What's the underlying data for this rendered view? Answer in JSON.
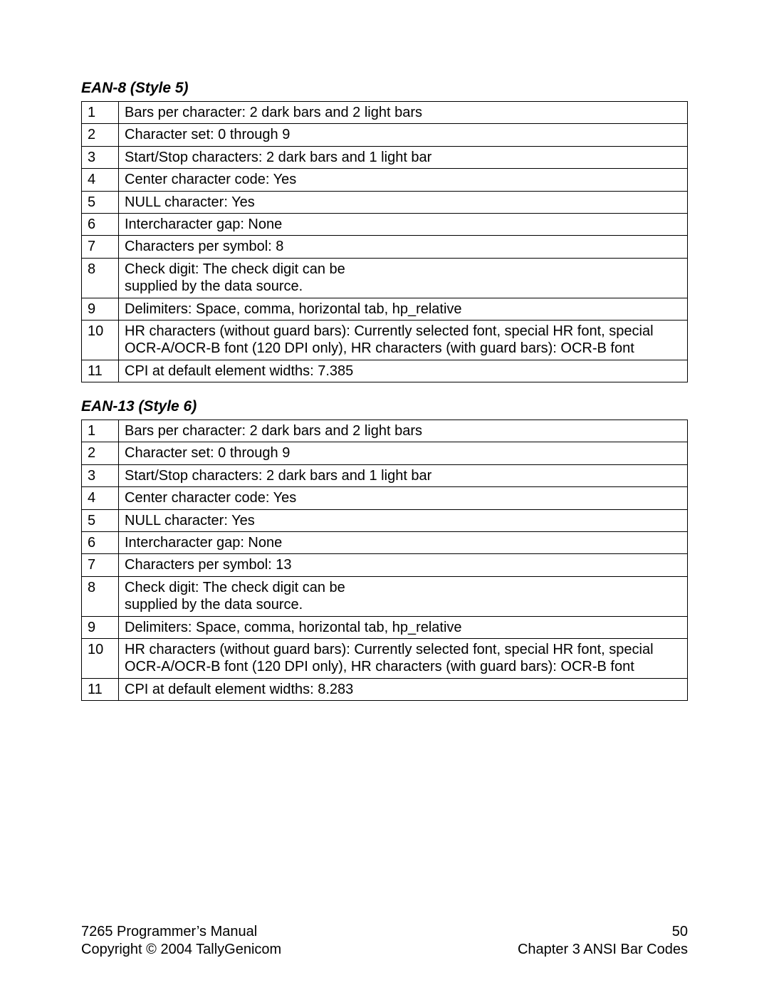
{
  "section1": {
    "heading": "EAN-8 (Style 5)",
    "rows": [
      {
        "n": "1",
        "t": "Bars per character: 2 dark bars and 2 light bars"
      },
      {
        "n": "2",
        "t": "Character set: 0 through 9"
      },
      {
        "n": "3",
        "t": "Start/Stop characters: 2 dark bars and 1 light bar"
      },
      {
        "n": "4",
        "t": "Center character code: Yes"
      },
      {
        "n": "5",
        "t": "NULL character: Yes"
      },
      {
        "n": "6",
        "t": "Intercharacter gap: None"
      },
      {
        "n": "7",
        "t": "Characters per symbol: 8"
      },
      {
        "n": "8",
        "t": "Check digit: The check digit can be\nsupplied by the data source."
      },
      {
        "n": "9",
        "t": "Delimiters: Space, comma, horizontal tab, hp_relative"
      },
      {
        "n": "10",
        "t": "HR characters (without guard bars): Currently selected font, special HR font, special OCR-A/OCR-B font (120 DPI only), HR characters (with guard bars): OCR-B font"
      },
      {
        "n": "11",
        "t": "CPI at default element widths: 7.385"
      }
    ]
  },
  "section2": {
    "heading": "EAN-13 (Style 6)",
    "rows": [
      {
        "n": "1",
        "t": "Bars per character: 2 dark bars and 2 light bars"
      },
      {
        "n": "2",
        "t": "Character set: 0 through 9"
      },
      {
        "n": "3",
        "t": "Start/Stop characters: 2 dark bars and 1 light bar"
      },
      {
        "n": "4",
        "t": "Center character code: Yes"
      },
      {
        "n": "5",
        "t": "NULL character: Yes"
      },
      {
        "n": "6",
        "t": "Intercharacter gap: None"
      },
      {
        "n": "7",
        "t": "Characters per symbol: 13"
      },
      {
        "n": "8",
        "t": "Check digit: The check digit can be\nsupplied by the data source."
      },
      {
        "n": "9",
        "t": "Delimiters: Space, comma, horizontal tab, hp_relative"
      },
      {
        "n": "10",
        "t": "HR characters (without guard bars): Currently selected font, special HR font, special OCR-A/OCR-B font (120 DPI only), HR characters (with guard bars): OCR-B font"
      },
      {
        "n": "11",
        "t": "CPI at default element widths: 8.283"
      }
    ]
  },
  "footer": {
    "left_line1": "7265 Programmer’s Manual",
    "left_line2": "Copyright © 2004 TallyGenicom",
    "page_number": "50",
    "right_line2": "Chapter 3 ANSI Bar Codes"
  }
}
